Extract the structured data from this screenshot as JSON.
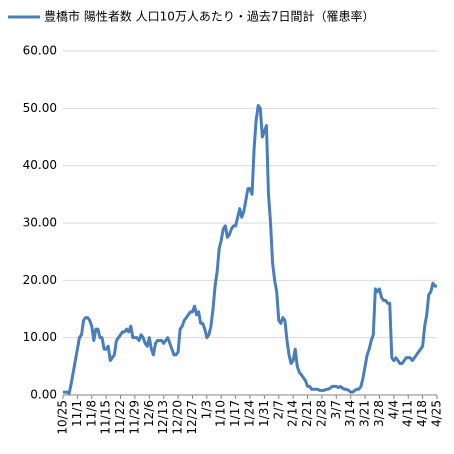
{
  "chart_data": {
    "type": "line",
    "categories": [
      "10/25",
      null,
      null,
      null,
      null,
      null,
      null,
      "11/1",
      null,
      null,
      null,
      null,
      null,
      null,
      "11/8",
      null,
      null,
      null,
      null,
      null,
      null,
      "11/15",
      null,
      null,
      null,
      null,
      null,
      null,
      "11/22",
      null,
      null,
      null,
      null,
      null,
      null,
      "11/29",
      null,
      null,
      null,
      null,
      null,
      null,
      "12/6",
      null,
      null,
      null,
      null,
      null,
      null,
      "12/13",
      null,
      null,
      null,
      null,
      null,
      null,
      "12/20",
      null,
      null,
      null,
      null,
      null,
      null,
      "12/27",
      null,
      null,
      null,
      null,
      null,
      null,
      "1/3",
      null,
      null,
      null,
      null,
      null,
      null,
      "1/10",
      null,
      null,
      null,
      null,
      null,
      null,
      "1/17",
      null,
      null,
      null,
      null,
      null,
      null,
      "1/24",
      null,
      null,
      null,
      null,
      null,
      null,
      "1/31",
      null,
      null,
      null,
      null,
      null,
      null,
      "2/7",
      null,
      null,
      null,
      null,
      null,
      null,
      "2/14",
      null,
      null,
      null,
      null,
      null,
      null,
      "2/21",
      null,
      null,
      null,
      null,
      null,
      null,
      "2/28",
      null,
      null,
      null,
      null,
      null,
      null,
      "3/7",
      null,
      null,
      null,
      null,
      null,
      null,
      "3/14",
      null,
      null,
      null,
      null,
      null,
      null,
      "3/21",
      null,
      null,
      null,
      null,
      null,
      null,
      "3/28",
      null,
      null,
      null,
      null,
      null,
      null,
      "4/4",
      null,
      null,
      null,
      null,
      null,
      null,
      "4/11",
      null,
      null,
      null,
      null,
      null,
      null,
      "4/18",
      null,
      null,
      null,
      null,
      null,
      null,
      "4/25"
    ],
    "series": [
      {
        "name": "豊橋市 陽性者数 人口10万人あたり・過去7日間計（罹患率）",
        "color": "#4a7ebb",
        "values": [
          0.5,
          0.5,
          0.5,
          0.3,
          2,
          4,
          6,
          8,
          10,
          10.5,
          13,
          13.5,
          13.5,
          13,
          12,
          9.5,
          11.5,
          11.5,
          10,
          10,
          8,
          8,
          8.5,
          6,
          6.5,
          7,
          9.5,
          10,
          10.5,
          11,
          11,
          11.5,
          11,
          12,
          10,
          10,
          10,
          9.5,
          10.5,
          10,
          9,
          8.5,
          10,
          8,
          7,
          9,
          9.5,
          9.5,
          9.5,
          9,
          9.5,
          10,
          9,
          8,
          7,
          7,
          7.5,
          11.5,
          12,
          13,
          13.5,
          14,
          14.5,
          14.5,
          15.5,
          14,
          14.5,
          12.5,
          12.5,
          11.5,
          10,
          10.5,
          12,
          15,
          19,
          21.5,
          25.5,
          27,
          29,
          29.5,
          27.5,
          28,
          29,
          29.5,
          29.5,
          31,
          32.5,
          31,
          32,
          34,
          36,
          36,
          35,
          43,
          48,
          50.5,
          50,
          45,
          46,
          47,
          35,
          30,
          23,
          20,
          18,
          13,
          12.5,
          13.5,
          13,
          9.5,
          7,
          5.5,
          6,
          8,
          5,
          4,
          3.5,
          3,
          2.5,
          1.5,
          1.5,
          1,
          1,
          1,
          1,
          0.8,
          0.8,
          0.8,
          1,
          1,
          1.2,
          1.5,
          1.5,
          1.5,
          1.3,
          1.5,
          1.2,
          1,
          1,
          0.8,
          0.5,
          0.5,
          0.8,
          1,
          1,
          1.5,
          3,
          5,
          7,
          8,
          9.5,
          10.5,
          18.5,
          18,
          18.5,
          17,
          16.5,
          16.5,
          16,
          16,
          6.5,
          6,
          6.5,
          6,
          5.5,
          5.5,
          6,
          6.5,
          6.5,
          6.5,
          6,
          6.5,
          7,
          7.5,
          8,
          8.5,
          12,
          14,
          17.5,
          18,
          19.5,
          19,
          19
        ]
      }
    ],
    "ylim": [
      0,
      60
    ],
    "yticks": [
      {
        "value": 0,
        "label": "0.00"
      },
      {
        "value": 10,
        "label": "10.00"
      },
      {
        "value": 20,
        "label": "20.00"
      },
      {
        "value": 30,
        "label": "30.00"
      },
      {
        "value": 40,
        "label": "40.00"
      },
      {
        "value": 50,
        "label": "50.00"
      },
      {
        "value": 60,
        "label": "60.00"
      }
    ],
    "grid": true
  }
}
